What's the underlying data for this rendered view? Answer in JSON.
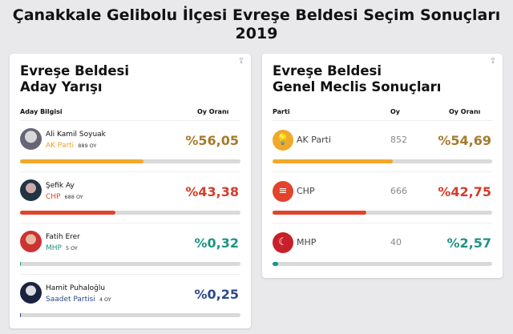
{
  "page_title": "Çanakkale Gelibolu İlçesi Evreşe Beldesi Seçim Sonuçları 2019",
  "left_card": {
    "title_line1": "Evreşe Beldesi",
    "title_line2": "Aday Yarışı",
    "col_candidate": "Aday Bilgisi",
    "col_rate": "Oy Oranı",
    "share_icon": "share-icon",
    "candidates": [
      {
        "name": "Ali Kamil Soyuak",
        "party": "AK Parti",
        "votes": "889 OY",
        "rate": "%56,05",
        "share": 56.05,
        "color": "#f0a92b",
        "text_color": "#a57b2c",
        "party_color": "#e9a227"
      },
      {
        "name": "Şefik Ay",
        "party": "CHP",
        "votes": "688 OY",
        "rate": "%43,38",
        "share": 43.38,
        "color": "#e2432b",
        "text_color": "#d43c2a",
        "party_color": "#e2432b"
      },
      {
        "name": "Fatih Erer",
        "party": "MHP",
        "votes": "5 OY",
        "rate": "%0,32",
        "share": 0.32,
        "color": "#1e9486",
        "text_color": "#1e9486",
        "party_color": "#1e9486"
      },
      {
        "name": "Hamit Puhaloğlu",
        "party": "Saadet Partisi",
        "votes": "4 OY",
        "rate": "%0,25",
        "share": 0.25,
        "color": "#2c4a8a",
        "text_color": "#2c4a8a",
        "party_color": "#2c4a8a"
      }
    ]
  },
  "right_card": {
    "title_line1": "Evreşe Beldesi",
    "title_line2": "Genel Meclis Sonuçları",
    "col_party": "Parti",
    "col_votes": "Oy",
    "col_rate": "Oy Oranı",
    "share_icon": "share-icon",
    "parties": [
      {
        "name": "AK Parti",
        "votes": "852",
        "rate": "%54,69",
        "share": 54.69,
        "color": "#f0a92b",
        "text_color": "#a57b2c",
        "logo": "lightbulb-logo-icon"
      },
      {
        "name": "CHP",
        "votes": "666",
        "rate": "%42,75",
        "share": 42.75,
        "color": "#e2432b",
        "text_color": "#d43c2a",
        "logo": "six-arrows-logo-icon"
      },
      {
        "name": "MHP",
        "votes": "40",
        "rate": "%2,57",
        "share": 2.57,
        "color": "#1e9486",
        "text_color": "#1e9486",
        "logo": "three-crescents-logo-icon"
      }
    ]
  }
}
